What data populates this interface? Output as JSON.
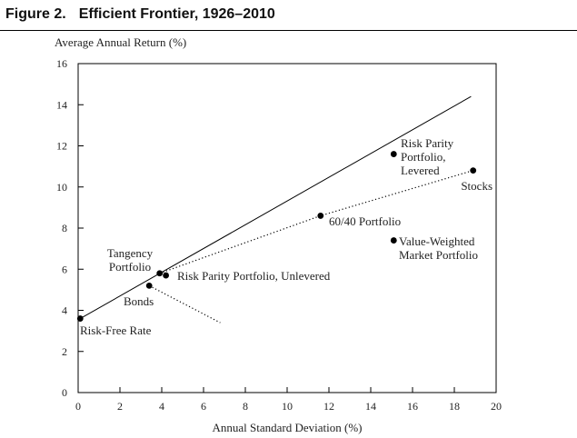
{
  "figure": {
    "label": "Figure 2.",
    "title": "Efficient Frontier, 1926–2010"
  },
  "chart_data": {
    "type": "scatter",
    "xlabel": "Annual Standard Deviation (%)",
    "ylabel": "Average Annual Return (%)",
    "xlim": [
      0,
      20
    ],
    "ylim": [
      0,
      16
    ],
    "xticks": [
      0,
      2,
      4,
      6,
      8,
      10,
      12,
      14,
      16,
      18,
      20
    ],
    "yticks": [
      0,
      2,
      4,
      6,
      8,
      10,
      12,
      14,
      16
    ],
    "grid": false,
    "points": [
      {
        "label_lines": [
          "Risk-Free Rate"
        ],
        "x": 0.1,
        "y": 3.6
      },
      {
        "label_lines": [
          "Tangency",
          "Portfolio"
        ],
        "x": 3.9,
        "y": 5.8
      },
      {
        "label_lines": [
          "Risk Parity Portfolio, Unlevered"
        ],
        "x": 4.2,
        "y": 5.7
      },
      {
        "label_lines": [
          "Bonds"
        ],
        "x": 3.4,
        "y": 5.2
      },
      {
        "label_lines": [
          "60/40 Portfolio"
        ],
        "x": 11.6,
        "y": 8.6
      },
      {
        "label_lines": [
          "Risk Parity",
          "Portfolio,",
          "Levered"
        ],
        "x": 15.1,
        "y": 11.6
      },
      {
        "label_lines": [
          "Stocks"
        ],
        "x": 18.9,
        "y": 10.8
      },
      {
        "label_lines": [
          "Value-Weighted",
          "Market Portfolio"
        ],
        "x": 15.1,
        "y": 7.4
      }
    ],
    "lines": [
      {
        "kind": "solid",
        "points": [
          [
            0.1,
            3.6
          ],
          [
            18.8,
            14.4
          ]
        ]
      },
      {
        "kind": "dotted",
        "points": [
          [
            3.9,
            5.8
          ],
          [
            11.6,
            8.6
          ],
          [
            18.9,
            10.8
          ]
        ]
      },
      {
        "kind": "dotted",
        "points": [
          [
            3.4,
            5.2
          ],
          [
            6.8,
            3.4
          ]
        ]
      }
    ]
  }
}
